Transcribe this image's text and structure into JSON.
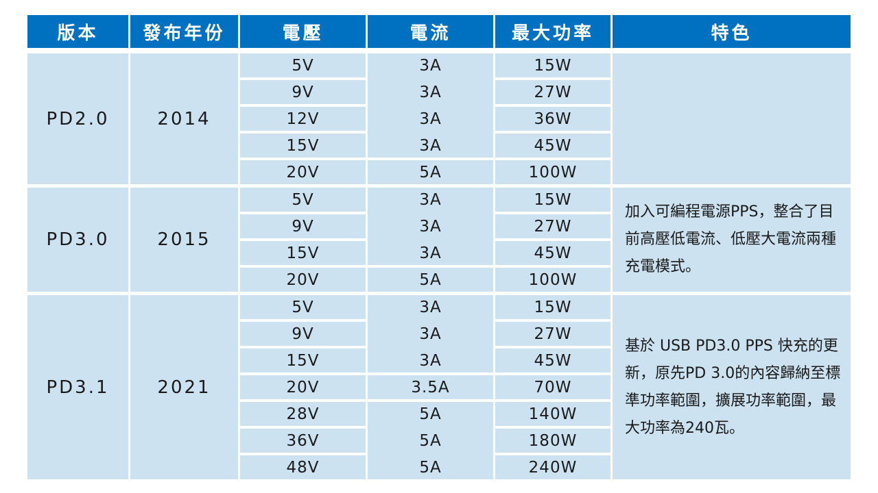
{
  "headers": [
    "版本",
    "發布年份",
    "電壓",
    "電流",
    "最大功率",
    "特色"
  ],
  "groups": [
    {
      "version": "PD2.0",
      "year": "2014",
      "feature": "",
      "rows": [
        {
          "voltage": "5V",
          "current": "3A",
          "power": "15W"
        },
        {
          "voltage": "9V",
          "current": "3A",
          "power": "27W"
        },
        {
          "voltage": "12V",
          "current": "3A",
          "power": "36W"
        },
        {
          "voltage": "15V",
          "current": "3A",
          "power": "45W"
        },
        {
          "voltage": "20V",
          "current": "5A",
          "power": "100W"
        }
      ]
    },
    {
      "version": "PD3.0",
      "year": "2015",
      "feature": "加入可編程電源PPS，整合了目前高壓低電流、低壓大電流兩種充電模式。",
      "rows": [
        {
          "voltage": "5V",
          "current": "3A",
          "power": "15W"
        },
        {
          "voltage": "9V",
          "current": "3A",
          "power": "27W"
        },
        {
          "voltage": "15V",
          "current": "3A",
          "power": "45W"
        },
        {
          "voltage": "20V",
          "current": "5A",
          "power": "100W"
        }
      ]
    },
    {
      "version": "PD3.1",
      "year": "2021",
      "feature": "基於 USB PD3.0 PPS 快充的更新，原先PD 3.0的內容歸納至標準功率範圍，擴展功率範圍，最大功率為240瓦。",
      "rows": [
        {
          "voltage": "5V",
          "current": "3A",
          "power": "15W"
        },
        {
          "voltage": "9V",
          "current": "3A",
          "power": "27W"
        },
        {
          "voltage": "15V",
          "current": "3A",
          "power": "45W"
        },
        {
          "voltage": "20V",
          "current": "3.5A",
          "power": "70W"
        },
        {
          "voltage": "28V",
          "current": "5A",
          "power": "140W"
        },
        {
          "voltage": "36V",
          "current": "5A",
          "power": "180W"
        },
        {
          "voltage": "48V",
          "current": "5A",
          "power": "240W"
        }
      ]
    }
  ],
  "colors": {
    "header": "#0070c0",
    "cell": "#cce2f0",
    "header_text": "#ffffff"
  }
}
